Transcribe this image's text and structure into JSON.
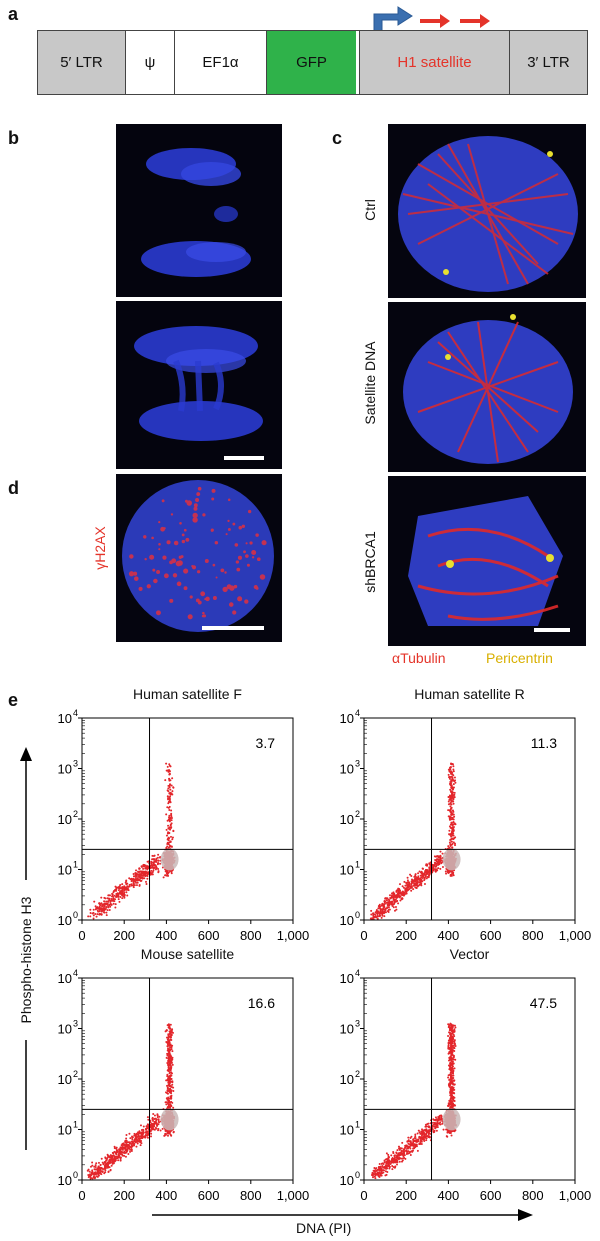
{
  "panel_labels": {
    "a": "a",
    "b": "b",
    "c": "c",
    "d": "d",
    "e": "e"
  },
  "construct": {
    "segments": [
      "5′ LTR",
      "ψ",
      "EF1α",
      "GFP",
      "H1 satellite",
      "3′ LTR"
    ],
    "colors": {
      "gray": "#c8c8c8",
      "green": "#2fb24a",
      "promoter_arrow": "#3a6fb0",
      "satellite_arrow": "#e4342a"
    }
  },
  "panel_c": {
    "row_labels": [
      "Ctrl",
      "Satellite DNA",
      "shBRCA1"
    ],
    "legend": {
      "tubulin": "αTubulin",
      "pericentrin": "Pericentrin"
    }
  },
  "panel_d": {
    "stain_label": "γH2AX"
  },
  "chart_data": [
    {
      "type": "scatter",
      "title": "Human satellite F",
      "percent": "3.7",
      "xlabel": "DNA (PI)",
      "ylabel": "Phospho-histone H3",
      "xlim": [
        0,
        1000
      ],
      "ylim_log": [
        1,
        10000
      ],
      "x_ticks": [
        "0",
        "200",
        "400",
        "600",
        "800",
        "1,000"
      ],
      "y_ticks": [
        "10",
        "10",
        "10",
        "10",
        "10"
      ],
      "y_exps": [
        "0",
        "1",
        "2",
        "3",
        "4"
      ],
      "gate": {
        "x": 320,
        "y": 25
      }
    },
    {
      "type": "scatter",
      "title": "Human satellite R",
      "percent": "11.3",
      "xlabel": "DNA (PI)",
      "ylabel": "Phospho-histone H3",
      "xlim": [
        0,
        1000
      ],
      "ylim_log": [
        1,
        10000
      ],
      "x_ticks": [
        "0",
        "200",
        "400",
        "600",
        "800",
        "1,000"
      ],
      "y_ticks": [
        "10",
        "10",
        "10",
        "10",
        "10"
      ],
      "y_exps": [
        "0",
        "1",
        "2",
        "3",
        "4"
      ],
      "gate": {
        "x": 320,
        "y": 25
      }
    },
    {
      "type": "scatter",
      "title": "Mouse satellite",
      "percent": "16.6",
      "xlabel": "DNA (PI)",
      "ylabel": "Phospho-histone H3",
      "xlim": [
        0,
        1000
      ],
      "ylim_log": [
        1,
        10000
      ],
      "x_ticks": [
        "0",
        "200",
        "400",
        "600",
        "800",
        "1,000"
      ],
      "y_ticks": [
        "10",
        "10",
        "10",
        "10",
        "10"
      ],
      "y_exps": [
        "0",
        "1",
        "2",
        "3",
        "4"
      ],
      "gate": {
        "x": 320,
        "y": 25
      }
    },
    {
      "type": "scatter",
      "title": "Vector",
      "percent": "47.5",
      "xlabel": "DNA (PI)",
      "ylabel": "Phospho-histone H3",
      "xlim": [
        0,
        1000
      ],
      "ylim_log": [
        1,
        10000
      ],
      "x_ticks": [
        "0",
        "200",
        "400",
        "600",
        "800",
        "1,000"
      ],
      "y_ticks": [
        "10",
        "10",
        "10",
        "10",
        "10"
      ],
      "y_exps": [
        "0",
        "1",
        "2",
        "3",
        "4"
      ],
      "gate": {
        "x": 320,
        "y": 25
      }
    }
  ],
  "axis_labels": {
    "y": "Phospho-histone H3",
    "x": "DNA (PI)"
  }
}
